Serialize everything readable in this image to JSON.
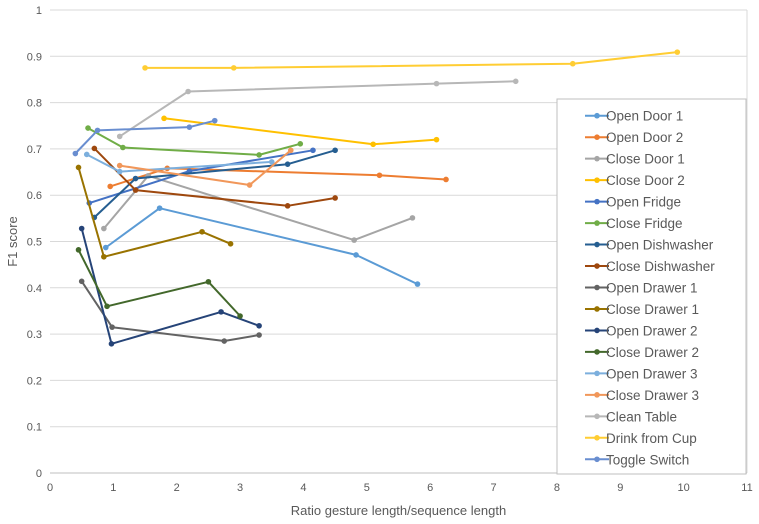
{
  "chart_data": {
    "type": "line",
    "title": "",
    "xlabel": "Ratio gesture length/sequence length",
    "ylabel": "F1 score",
    "xlim": [
      0,
      11
    ],
    "ylim": [
      0,
      1
    ],
    "x_ticks": [
      "0",
      "1",
      "2",
      "3",
      "4",
      "5",
      "6",
      "7",
      "8",
      "9",
      "10",
      "11"
    ],
    "y_ticks": [
      "0",
      "0.1",
      "0.2",
      "0.3",
      "0.4",
      "0.5",
      "0.6",
      "0.7",
      "0.8",
      "0.9",
      "1"
    ],
    "grid": "horizontal",
    "legend_position": "right",
    "series": [
      {
        "name": "Open Door 1",
        "color": "#5B9BD5",
        "points": [
          [
            0.88,
            0.487
          ],
          [
            1.73,
            0.572
          ],
          [
            4.83,
            0.471
          ],
          [
            5.8,
            0.408
          ]
        ]
      },
      {
        "name": "Open Door 2",
        "color": "#ED7D31",
        "points": [
          [
            0.95,
            0.619
          ],
          [
            1.85,
            0.658
          ],
          [
            5.2,
            0.643
          ],
          [
            6.25,
            0.634
          ]
        ]
      },
      {
        "name": "Close Door 1",
        "color": "#A5A5A5",
        "points": [
          [
            0.85,
            0.528
          ],
          [
            1.55,
            0.642
          ],
          [
            4.8,
            0.503
          ],
          [
            5.72,
            0.551
          ]
        ]
      },
      {
        "name": "Close Door 2",
        "color": "#FFC000",
        "points": [
          [
            1.8,
            0.766
          ],
          [
            5.1,
            0.71
          ],
          [
            6.1,
            0.72
          ]
        ]
      },
      {
        "name": "Open Fridge",
        "color": "#4472C4",
        "points": [
          [
            0.62,
            0.583
          ],
          [
            2.2,
            0.652
          ],
          [
            4.15,
            0.697
          ]
        ]
      },
      {
        "name": "Close Fridge",
        "color": "#70AD47",
        "points": [
          [
            0.6,
            0.745
          ],
          [
            1.15,
            0.703
          ],
          [
            3.3,
            0.687
          ],
          [
            3.95,
            0.711
          ]
        ]
      },
      {
        "name": "Open Dishwasher",
        "color": "#255E91",
        "points": [
          [
            0.7,
            0.552
          ],
          [
            1.35,
            0.636
          ],
          [
            3.75,
            0.667
          ],
          [
            4.5,
            0.697
          ]
        ]
      },
      {
        "name": "Close Dishwasher",
        "color": "#9E480E",
        "points": [
          [
            0.7,
            0.701
          ],
          [
            1.35,
            0.611
          ],
          [
            3.75,
            0.577
          ],
          [
            4.5,
            0.594
          ]
        ]
      },
      {
        "name": "Open Drawer 1",
        "color": "#636363",
        "points": [
          [
            0.5,
            0.414
          ],
          [
            0.98,
            0.315
          ],
          [
            2.75,
            0.285
          ],
          [
            3.3,
            0.298
          ]
        ]
      },
      {
        "name": "Close Drawer 1",
        "color": "#997300",
        "points": [
          [
            0.45,
            0.66
          ],
          [
            0.85,
            0.467
          ],
          [
            2.4,
            0.521
          ],
          [
            2.85,
            0.495
          ]
        ]
      },
      {
        "name": "Open Drawer 2",
        "color": "#264478",
        "points": [
          [
            0.5,
            0.528
          ],
          [
            0.97,
            0.279
          ],
          [
            2.7,
            0.348
          ],
          [
            3.3,
            0.318
          ]
        ]
      },
      {
        "name": "Close Drawer 2",
        "color": "#43682B",
        "points": [
          [
            0.45,
            0.482
          ],
          [
            0.9,
            0.36
          ],
          [
            2.5,
            0.413
          ],
          [
            3.0,
            0.339
          ]
        ]
      },
      {
        "name": "Open Drawer 3",
        "color": "#7CAFDD",
        "points": [
          [
            0.58,
            0.688
          ],
          [
            1.1,
            0.651
          ],
          [
            3.5,
            0.672
          ]
        ]
      },
      {
        "name": "Close Drawer 3",
        "color": "#F1975A",
        "points": [
          [
            1.1,
            0.664
          ],
          [
            3.15,
            0.622
          ],
          [
            3.8,
            0.697
          ]
        ]
      },
      {
        "name": "Clean Table",
        "color": "#B7B7B7",
        "points": [
          [
            1.1,
            0.727
          ],
          [
            2.18,
            0.824
          ],
          [
            6.1,
            0.841
          ],
          [
            7.35,
            0.846
          ]
        ]
      },
      {
        "name": "Drink from Cup",
        "color": "#FFCD33",
        "points": [
          [
            1.5,
            0.875
          ],
          [
            2.9,
            0.875
          ],
          [
            8.25,
            0.884
          ],
          [
            9.9,
            0.909
          ]
        ]
      },
      {
        "name": "Toggle Switch",
        "color": "#698ED0",
        "points": [
          [
            0.4,
            0.69
          ],
          [
            0.75,
            0.74
          ],
          [
            2.2,
            0.747
          ],
          [
            2.6,
            0.761
          ]
        ]
      }
    ]
  }
}
